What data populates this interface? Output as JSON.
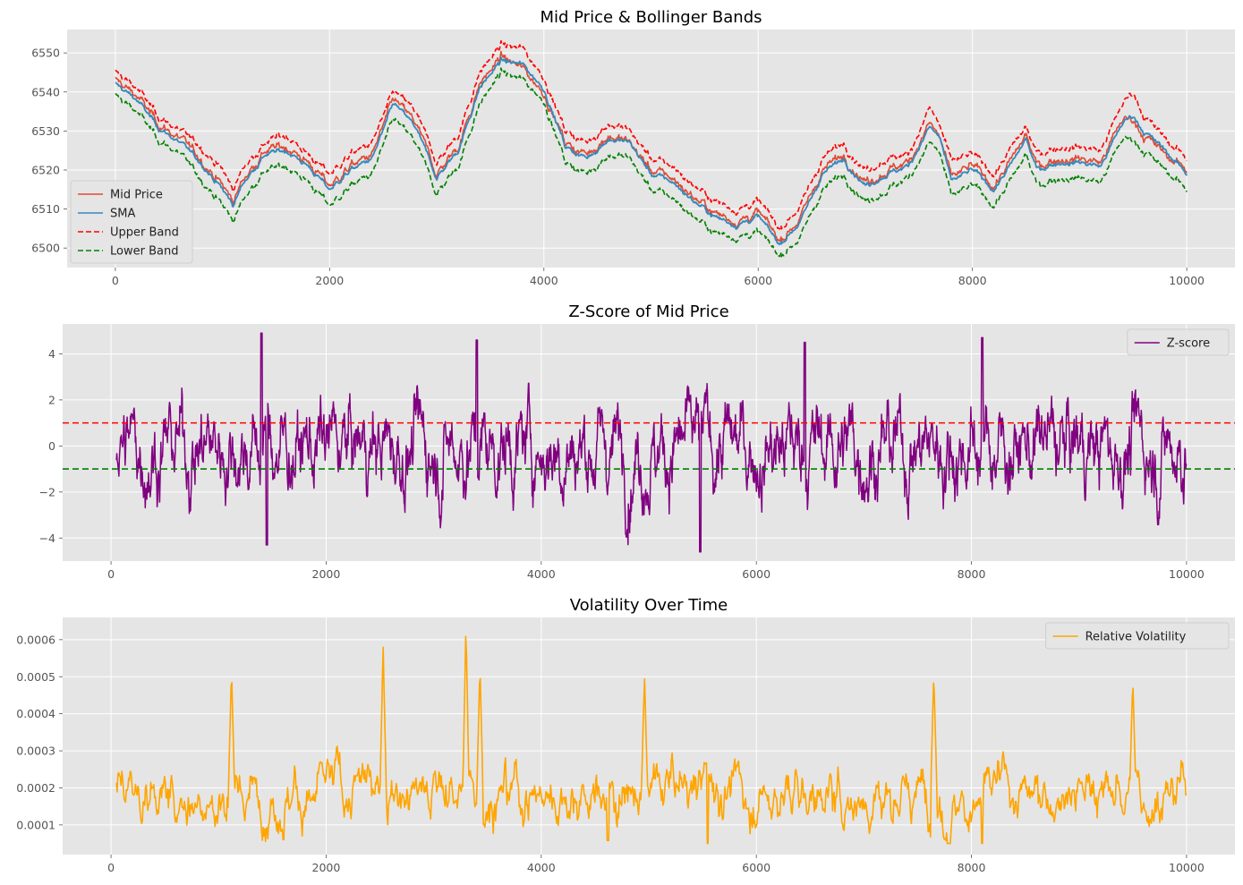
{
  "chart_data": [
    {
      "type": "line",
      "title": "Mid Price & Bollinger Bands",
      "xlim": [
        -450,
        10450
      ],
      "ylim": [
        6495,
        6556
      ],
      "xticks": [
        0,
        2000,
        4000,
        6000,
        8000,
        10000
      ],
      "yticks": [
        6500,
        6510,
        6520,
        6530,
        6540,
        6550
      ],
      "legend": "lower-left",
      "grid": true,
      "series": [
        {
          "name": "Mid Price",
          "color": "#e24a33",
          "style": "solid"
        },
        {
          "name": "SMA",
          "color": "#348abd",
          "style": "solid"
        },
        {
          "name": "Upper Band",
          "color": "#ff0000",
          "style": "dashed"
        },
        {
          "name": "Lower Band",
          "color": "#008000",
          "style": "dashed"
        }
      ],
      "x": [
        0,
        200,
        400,
        600,
        800,
        1000,
        1100,
        1200,
        1400,
        1600,
        1800,
        2000,
        2200,
        2400,
        2600,
        2800,
        3000,
        3200,
        3400,
        3600,
        3800,
        4000,
        4200,
        4400,
        4600,
        4800,
        5000,
        5200,
        5400,
        5600,
        5800,
        6000,
        6200,
        6400,
        6600,
        6800,
        7000,
        7200,
        7400,
        7600,
        7700,
        7800,
        8000,
        8200,
        8400,
        8500,
        8600,
        8800,
        9000,
        9200,
        9400,
        9500,
        9600,
        9800,
        10000
      ],
      "mid": [
        6543,
        6539,
        6532,
        6528,
        6523,
        6516,
        6512,
        6518,
        6525,
        6526,
        6522,
        6516,
        6521,
        6524,
        6538,
        6532,
        6519,
        6526,
        6542,
        6549,
        6546,
        6540,
        6527,
        6524,
        6529,
        6527,
        6520,
        6518,
        6513,
        6509,
        6507,
        6509,
        6502,
        6508,
        6520,
        6524,
        6517,
        6520,
        6522,
        6532,
        6528,
        6518,
        6521,
        6516,
        6524,
        6529,
        6521,
        6523,
        6523,
        6522,
        6533,
        6533,
        6529,
        6524,
        6520
      ],
      "sma": [
        6542,
        6538,
        6531,
        6527,
        6522,
        6515,
        6511,
        6517,
        6524,
        6525,
        6521,
        6515,
        6520,
        6523,
        6537,
        6531,
        6518,
        6525,
        6541,
        6548,
        6547,
        6541,
        6526,
        6523,
        6528,
        6527,
        6519,
        6517,
        6512,
        6508,
        6506,
        6508,
        6501,
        6507,
        6519,
        6523,
        6516,
        6519,
        6521,
        6531,
        6528,
        6517,
        6520,
        6515,
        6523,
        6528,
        6520,
        6522,
        6522,
        6521,
        6532,
        6534,
        6530,
        6525,
        6519
      ],
      "upper": [
        6545,
        6541,
        6534,
        6530,
        6526,
        6520,
        6515,
        6521,
        6527,
        6529,
        6524,
        6519,
        6524,
        6527,
        6540,
        6535,
        6522,
        6529,
        6545,
        6552,
        6551,
        6544,
        6530,
        6527,
        6532,
        6530,
        6523,
        6521,
        6516,
        6512,
        6510,
        6512,
        6505,
        6511,
        6523,
        6527,
        6520,
        6523,
        6524,
        6536,
        6531,
        6522,
        6524,
        6519,
        6527,
        6531,
        6524,
        6526,
        6526,
        6525,
        6537,
        6540,
        6534,
        6528,
        6523
      ],
      "lower": [
        6539,
        6535,
        6528,
        6524,
        6518,
        6511,
        6507,
        6513,
        6520,
        6521,
        6517,
        6511,
        6516,
        6519,
        6533,
        6527,
        6514,
        6521,
        6537,
        6545,
        6543,
        6538,
        6522,
        6519,
        6524,
        6523,
        6515,
        6513,
        6508,
        6504,
        6503,
        6504,
        6498,
        6503,
        6515,
        6519,
        6512,
        6515,
        6518,
        6527,
        6524,
        6513,
        6516,
        6511,
        6519,
        6524,
        6516,
        6518,
        6518,
        6517,
        6528,
        6528,
        6525,
        6520,
        6515
      ]
    },
    {
      "type": "line",
      "title": "Z-Score of Mid Price",
      "xlim": [
        -450,
        10450
      ],
      "ylim": [
        -5,
        5.3
      ],
      "xticks": [
        0,
        2000,
        4000,
        6000,
        8000,
        10000
      ],
      "yticks": [
        -4,
        -2,
        0,
        2,
        4
      ],
      "legend": "top-right",
      "grid": true,
      "series": [
        {
          "name": "Z-score",
          "color": "#800080",
          "style": "solid"
        }
      ],
      "x_start": 50,
      "x_end": 10000,
      "hlines": [
        {
          "y": 1,
          "color": "#ff0000",
          "style": "dashed"
        },
        {
          "y": -1,
          "color": "#008000",
          "style": "dashed"
        }
      ],
      "extremes": [
        {
          "x": 1400,
          "y": 4.9
        },
        {
          "x": 1450,
          "y": -4.3
        },
        {
          "x": 3400,
          "y": 4.6
        },
        {
          "x": 5480,
          "y": -4.6
        },
        {
          "x": 6450,
          "y": 4.5
        },
        {
          "x": 8100,
          "y": 4.7
        }
      ],
      "range": [
        -4.6,
        4.9
      ]
    },
    {
      "type": "line",
      "title": "Volatility Over Time",
      "xlim": [
        -450,
        10450
      ],
      "ylim": [
        2e-05,
        0.00066
      ],
      "xticks": [
        0,
        2000,
        4000,
        6000,
        8000,
        10000
      ],
      "yticks": [
        0.0001,
        0.0002,
        0.0003,
        0.0004,
        0.0005,
        0.0006
      ],
      "legend": "top-right",
      "grid": true,
      "series": [
        {
          "name": "Relative Volatility",
          "color": "#ffa500",
          "style": "solid"
        }
      ],
      "x_start": 50,
      "x_end": 10000,
      "peaks": [
        {
          "x": 1120,
          "y": 0.00052
        },
        {
          "x": 2530,
          "y": 0.000585
        },
        {
          "x": 3300,
          "y": 0.00064
        },
        {
          "x": 3430,
          "y": 0.00053
        },
        {
          "x": 4960,
          "y": 0.000505
        },
        {
          "x": 7650,
          "y": 0.00051
        },
        {
          "x": 9500,
          "y": 0.000495
        }
      ],
      "troughs": [
        {
          "x": 4620,
          "y": 5.8e-05
        },
        {
          "x": 5550,
          "y": 5e-05
        },
        {
          "x": 8100,
          "y": 5e-05
        }
      ]
    }
  ]
}
